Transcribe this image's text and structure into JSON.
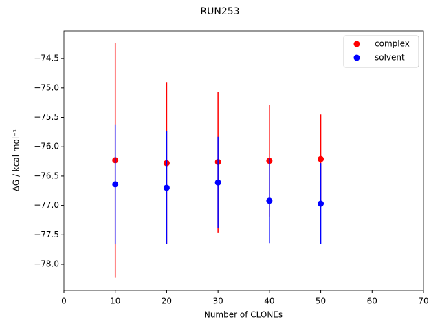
{
  "chart_data": {
    "type": "scatter",
    "title": "RUN253",
    "x_label": "Number of CLONEs",
    "y_label": "ΔG / kcal mol⁻¹",
    "x": [
      10,
      20,
      30,
      40,
      50
    ],
    "series": [
      {
        "name": "complex",
        "color": "#ff0000",
        "values": [
          -76.23,
          -76.28,
          -76.26,
          -76.24,
          -76.21
        ],
        "errors": [
          2.0,
          1.38,
          1.2,
          0.95,
          0.76
        ]
      },
      {
        "name": "solvent",
        "color": "#0000ff",
        "values": [
          -76.64,
          -76.7,
          -76.61,
          -76.92,
          -76.97
        ],
        "errors": [
          1.02,
          0.96,
          0.78,
          0.72,
          0.69
        ]
      }
    ],
    "xlim": [
      0,
      70
    ],
    "xticks": [
      0,
      10,
      20,
      30,
      40,
      50,
      60,
      70
    ],
    "ylim": [
      -78.445,
      -74.03
    ],
    "yticks": [
      {
        "value": -78.0,
        "label": "−78.0"
      },
      {
        "value": -77.5,
        "label": "−77.5"
      },
      {
        "value": -77.0,
        "label": "−77.0"
      },
      {
        "value": -76.5,
        "label": "−76.5"
      },
      {
        "value": -76.0,
        "label": "−76.0"
      },
      {
        "value": -75.5,
        "label": "−75.5"
      },
      {
        "value": -75.0,
        "label": "−75.0"
      },
      {
        "value": -74.5,
        "label": "−74.5"
      }
    ],
    "grid": false,
    "legend": "upper right"
  }
}
